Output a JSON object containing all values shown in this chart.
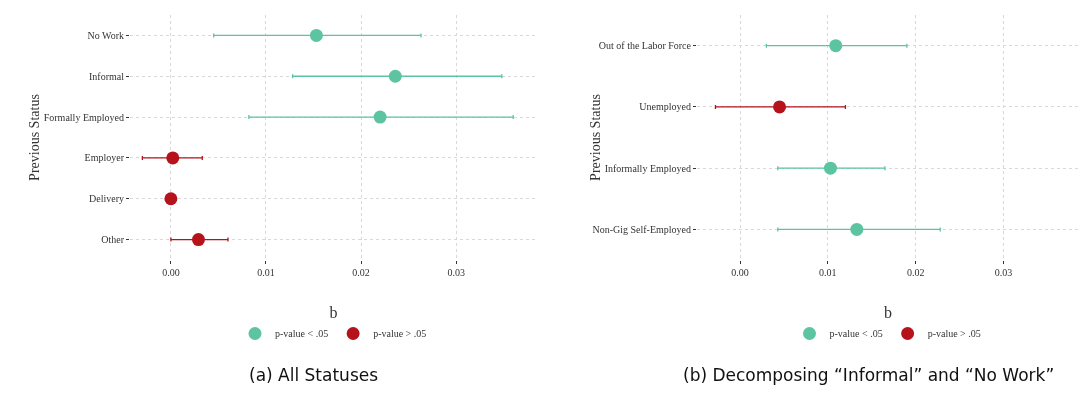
{
  "chart_data": [
    {
      "type": "scatter",
      "orientation": "horizontal",
      "xlabel": "b",
      "ylabel": "Previous Status",
      "categories": [
        "No Work",
        "Informal",
        "Formally Employed",
        "Employer",
        "Delivery",
        "Other"
      ],
      "series": [
        {
          "name": "p-value < .05",
          "color": "#5cc4a0",
          "values": [
            0.0153,
            0.0236,
            0.022,
            null,
            null,
            null
          ],
          "errors": [
            [
              0.0045,
              0.0263
            ],
            [
              0.0128,
              0.0348
            ],
            [
              0.0082,
              0.036
            ],
            null,
            null,
            null
          ]
        },
        {
          "name": "p-value > .05",
          "color": "#b5121b",
          "values": [
            null,
            null,
            null,
            0.0002,
            0.0,
            0.0029
          ],
          "errors": [
            null,
            null,
            null,
            [
              -0.003,
              0.0033
            ],
            null,
            [
              0.0,
              0.006
            ]
          ]
        }
      ],
      "xlim": [
        -0.0043,
        0.0385
      ],
      "xticks": [
        {
          "value": 0,
          "label": "0.00"
        },
        {
          "value": 0.01,
          "label": "0.01"
        },
        {
          "value": 0.02,
          "label": "0.02"
        },
        {
          "value": 0.03,
          "label": "0.03"
        }
      ],
      "grid": true,
      "legend": "bottom",
      "marker": "circle",
      "annotations": [
        "(a) All Statuses"
      ]
    },
    {
      "type": "scatter",
      "orientation": "horizontal",
      "xlabel": "b",
      "ylabel": "Previous Status",
      "categories": [
        "Out of the Labor Force",
        "Unemployed",
        "Informally Employed",
        "Non-Gig Self-Employed"
      ],
      "series": [
        {
          "name": "p-value < .05",
          "color": "#5cc4a0",
          "values": [
            0.0109,
            null,
            0.0103,
            0.0133
          ],
          "errors": [
            [
              0.003,
              0.019
            ],
            null,
            [
              0.0043,
              0.0165
            ],
            [
              0.0043,
              0.0228
            ]
          ]
        },
        {
          "name": "p-value > .05",
          "color": "#b5121b",
          "values": [
            null,
            0.0045,
            null,
            null
          ],
          "errors": [
            null,
            [
              -0.0028,
              0.012
            ],
            null,
            null
          ]
        }
      ],
      "xlim": [
        -0.0049,
        0.0386
      ],
      "xticks": [
        {
          "value": 0,
          "label": "0.00"
        },
        {
          "value": 0.01,
          "label": "0.01"
        },
        {
          "value": 0.02,
          "label": "0.02"
        },
        {
          "value": 0.03,
          "label": "0.03"
        }
      ],
      "grid": true,
      "legend": "bottom",
      "marker": "circle",
      "annotations": [
        "(b) Decomposing “Informal” and “No Work”"
      ]
    }
  ]
}
